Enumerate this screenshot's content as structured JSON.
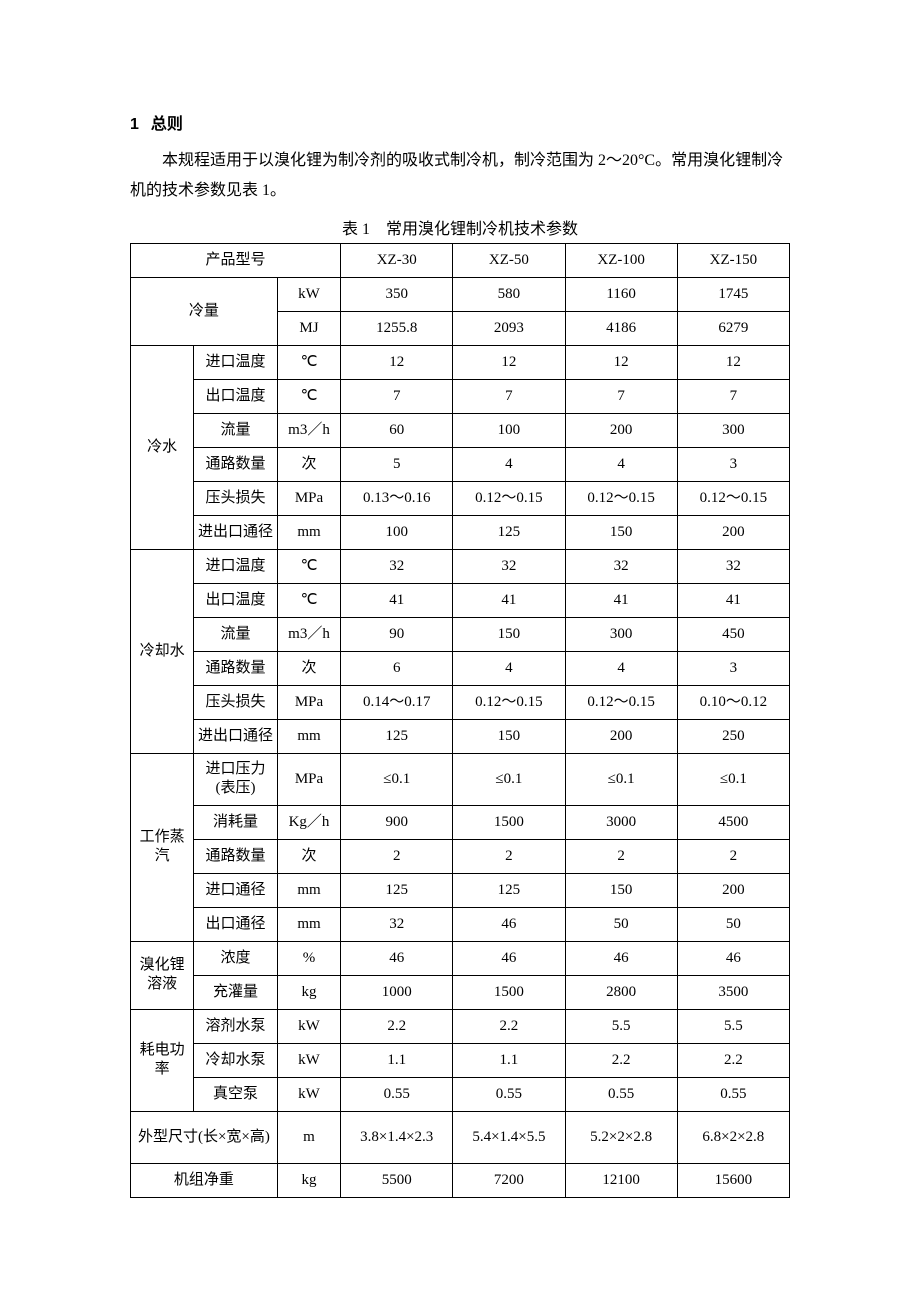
{
  "heading": {
    "number": "1",
    "title": "总则"
  },
  "paragraph": "本规程适用于以溴化锂为制冷剂的吸收式制冷机，制冷范围为 2～20°C。常用溴化锂制冷机的技术参数见表 1。",
  "tableCaption": "表 1　常用溴化锂制冷机技术参数",
  "labels": {
    "productModel": "产品型号",
    "capacity": "冷量",
    "chilledWater": "冷水",
    "coolingWater": "冷却水",
    "steam": "工作蒸汽",
    "solution": "溴化锂溶液",
    "power": "耗电功率",
    "dimensions": "外型尺寸(长×宽×高)",
    "netWeight": "机组净重",
    "inletTemp": "进口温度",
    "outletTemp": "出口温度",
    "flow": "流量",
    "passes": "通路数量",
    "headLoss": "压头损失",
    "portDia": "进出口通径",
    "inletPressure": "进口压力(表压)",
    "consumption": "消耗量",
    "inletDia": "进口通径",
    "outletDia": "出口通径",
    "concentration": "浓度",
    "charge": "充灌量",
    "solPump": "溶剂水泵",
    "coolPump": "冷却水泵",
    "vacPump": "真空泵"
  },
  "units": {
    "kW": "kW",
    "MJ": "MJ",
    "degC": "℃",
    "m3h": "m3／h",
    "times": "次",
    "MPa": "MPa",
    "mm": "mm",
    "kgh": "Kg／h",
    "pct": "%",
    "kg": "kg",
    "m": "m"
  },
  "models": [
    "XZ-30",
    "XZ-50",
    "XZ-100",
    "XZ-150"
  ],
  "rows": {
    "cap_kW": [
      "350",
      "580",
      "1160",
      "1745"
    ],
    "cap_MJ": [
      "1255.8",
      "2093",
      "4186",
      "6279"
    ],
    "cw_in": [
      "12",
      "12",
      "12",
      "12"
    ],
    "cw_out": [
      "7",
      "7",
      "7",
      "7"
    ],
    "cw_flow": [
      "60",
      "100",
      "200",
      "300"
    ],
    "cw_pass": [
      "5",
      "4",
      "4",
      "3"
    ],
    "cw_head": [
      "0.13～0.16",
      "0.12～0.15",
      "0.12～0.15",
      "0.12～0.15"
    ],
    "cw_dia": [
      "100",
      "125",
      "150",
      "200"
    ],
    "cl_in": [
      "32",
      "32",
      "32",
      "32"
    ],
    "cl_out": [
      "41",
      "41",
      "41",
      "41"
    ],
    "cl_flow": [
      "90",
      "150",
      "300",
      "450"
    ],
    "cl_pass": [
      "6",
      "4",
      "4",
      "3"
    ],
    "cl_head": [
      "0.14～0.17",
      "0.12～0.15",
      "0.12～0.15",
      "0.10～0.12"
    ],
    "cl_dia": [
      "125",
      "150",
      "200",
      "250"
    ],
    "st_press": [
      "≤0.1",
      "≤0.1",
      "≤0.1",
      "≤0.1"
    ],
    "st_cons": [
      "900",
      "1500",
      "3000",
      "4500"
    ],
    "st_pass": [
      "2",
      "2",
      "2",
      "2"
    ],
    "st_indi": [
      "125",
      "125",
      "150",
      "200"
    ],
    "st_outdi": [
      "32",
      "46",
      "50",
      "50"
    ],
    "so_conc": [
      "46",
      "46",
      "46",
      "46"
    ],
    "so_chg": [
      "1000",
      "1500",
      "2800",
      "3500"
    ],
    "pw_sol": [
      "2.2",
      "2.2",
      "5.5",
      "5.5"
    ],
    "pw_cool": [
      "1.1",
      "1.1",
      "2.2",
      "2.2"
    ],
    "pw_vac": [
      "0.55",
      "0.55",
      "0.55",
      "0.55"
    ],
    "dims": [
      "3.8×1.4×2.3",
      "5.4×1.4×5.5",
      "5.2×2×2.8",
      "6.8×2×2.8"
    ],
    "weight": [
      "5500",
      "7200",
      "12100",
      "15600"
    ]
  }
}
